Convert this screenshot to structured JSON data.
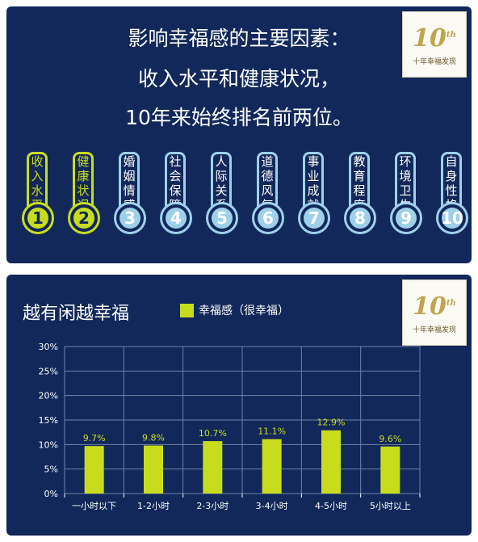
{
  "top_panel": {
    "headline": [
      "影响幸福感的主要因素：",
      "收入水平和健康状况，",
      "10年来始终排名前两位。"
    ],
    "factors": [
      {
        "rank": "1",
        "label": "收入水平",
        "highlight": true
      },
      {
        "rank": "2",
        "label": "健康状况",
        "highlight": true
      },
      {
        "rank": "3",
        "label": "婚姻情感",
        "highlight": false
      },
      {
        "rank": "4",
        "label": "社会保障",
        "highlight": false
      },
      {
        "rank": "5",
        "label": "人际关系",
        "highlight": false
      },
      {
        "rank": "6",
        "label": "道德风气",
        "highlight": false
      },
      {
        "rank": "7",
        "label": "事业成就",
        "highlight": false
      },
      {
        "rank": "8",
        "label": "教育程度",
        "highlight": false
      },
      {
        "rank": "9",
        "label": "环境卫生",
        "highlight": false
      },
      {
        "rank": "10",
        "label": "自身性格",
        "highlight": false
      }
    ]
  },
  "logo": {
    "mark": "10",
    "mark_sup": "th",
    "caption": "十年幸福发现"
  },
  "colors": {
    "panel": "#12285a",
    "accent": "#c8dc1e",
    "tube": "#9fd0ea"
  },
  "chart_data": {
    "type": "bar",
    "title": "越有闲越幸福",
    "series": [
      {
        "name": "幸福感（很幸福）",
        "values": [
          9.7,
          9.8,
          10.7,
          11.1,
          12.9,
          9.6
        ]
      }
    ],
    "categories": [
      "一小时以下",
      "1-2小时",
      "2-3小时",
      "3-4小时",
      "4-5小时",
      "5小时以上"
    ],
    "value_labels": [
      "9.7%",
      "9.8%",
      "10.7%",
      "11.1%",
      "12.9%",
      "9.6%"
    ],
    "yticks": [
      "0%",
      "5%",
      "10%",
      "15%",
      "20%",
      "25%",
      "30%"
    ],
    "ylim": [
      0,
      30
    ],
    "grid": true,
    "xlabel": "",
    "ylabel": ""
  }
}
